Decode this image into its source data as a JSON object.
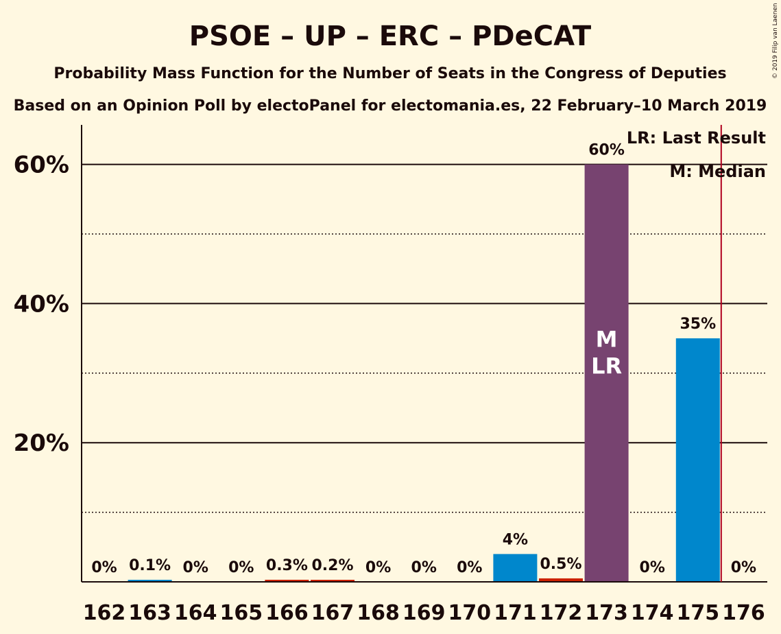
{
  "title": "PSOE – UP – ERC – PDeCAT",
  "subtitle": "Probability Mass Function for the Number of Seats in the Congress of Deputies",
  "subtitle2": "Based on an Opinion Poll by electoPanel for electomania.es, 22 February–10 March 2019",
  "copyright": "© 2019 Filip van Laenen",
  "legend": {
    "lr": "LR: Last Result",
    "m": "M: Median"
  },
  "chart_data": {
    "type": "bar",
    "categories": [
      "162",
      "163",
      "164",
      "165",
      "166",
      "167",
      "168",
      "169",
      "170",
      "171",
      "172",
      "173",
      "174",
      "175",
      "176"
    ],
    "values": [
      0,
      0.1,
      0,
      0,
      0.3,
      0.2,
      0,
      0,
      0,
      4,
      0.5,
      60,
      0,
      35,
      0
    ],
    "value_labels": [
      "0%",
      "0.1%",
      "0%",
      "0%",
      "0.3%",
      "0.2%",
      "0%",
      "0%",
      "0%",
      "4%",
      "0.5%",
      "60%",
      "0%",
      "35%",
      "0%"
    ],
    "bar_colors": [
      "#0087CC",
      "#0087CC",
      "#0087CC",
      "#0087CC",
      "#CC2200",
      "#CC2200",
      "#0087CC",
      "#0087CC",
      "#0087CC",
      "#0087CC",
      "#CC2200",
      "#774370",
      "#0087CC",
      "#0087CC",
      "#0087CC"
    ],
    "ylim": [
      0,
      65
    ],
    "yticks": [
      20,
      40,
      60
    ],
    "ytick_labels": [
      "20%",
      "40%",
      "60%"
    ],
    "ygrid_minor": [
      10,
      30,
      50
    ],
    "median_label": "M",
    "last_result_label": "LR",
    "median_category": "173",
    "majority_line_after": "175",
    "majority_line_color": "#B0001E",
    "legend_position": "top-right"
  }
}
